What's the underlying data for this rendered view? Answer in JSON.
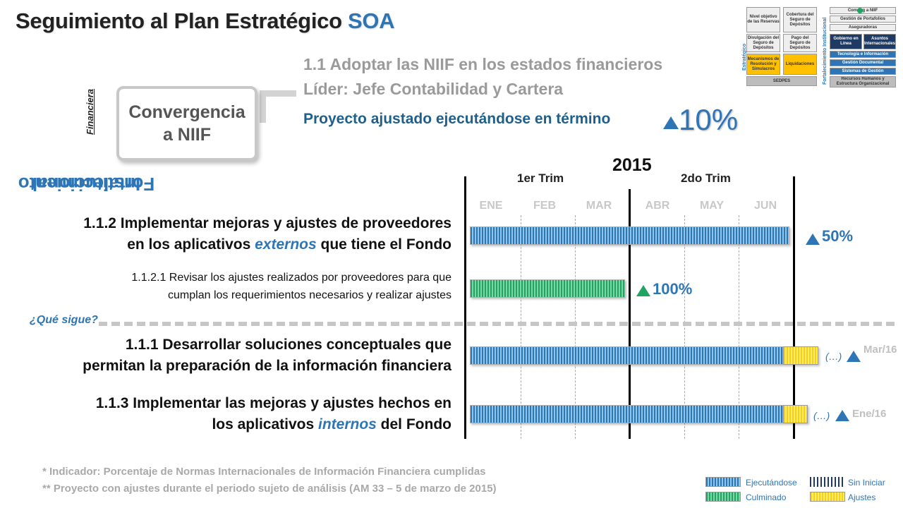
{
  "header": {
    "title_main": "Seguimiento al Plan Estratégico",
    "title_accent": "SOA"
  },
  "side": {
    "vertical_title_line1": "Fortalecimiento",
    "vertical_title_line2": "Institucional",
    "category": "Financiera"
  },
  "project": {
    "box_line1": "Convergencia",
    "box_line2": "a NIIF",
    "goal": "1.1 Adoptar las NIIF en los estados financieros",
    "leader": "Líder: Jefe Contabilidad y Cartera",
    "status": "Proyecto ajustado ejecutándose en término",
    "progress_label": "10%",
    "progress": 0.1
  },
  "mini_map": {
    "left_label": "Estratégico",
    "right_label": "Fortalecimiento Institucional",
    "cells": {
      "nivel": "Nivel objetivo de las Reservas",
      "cobertura": "Cobertura del Seguro de Depósitos",
      "divulgacion": "Divulgación del Seguro de Depósitos",
      "pago": "Pago del Seguro de Depósitos",
      "mecanismos": "Mecanismos de Resolución y Simulacros",
      "liquidaciones": "Liquidaciones",
      "sedpes": "SEDPES",
      "convergencia": "Converg      a NIIF",
      "portafolios": "Gestión de Portafolios",
      "aseguradoras": "Aseguradoras",
      "gobierno": "Gobierno en Línea",
      "asuntos": "Asuntos Internacionales",
      "tecnologia": "Tecnología e Información",
      "documental": "Gestión Documental",
      "sistemas": "Sistemas de Gestión",
      "recursos": "Recursos Humanos y Estructura Organizacional"
    }
  },
  "timeline": {
    "year": "2015",
    "trimesters": [
      "1er Trim",
      "2do Trim"
    ],
    "months": [
      "ENE",
      "FEB",
      "MAR",
      "ABR",
      "MAY",
      "JUN"
    ]
  },
  "tasks": {
    "t112": {
      "line1": "1.1.2  Implementar mejoras y ajustes de proveedores",
      "line2_pre": "en los aplicativos ",
      "line2_em": "externos",
      "line2_post": " que tiene el Fondo",
      "progress_label": "50%",
      "progress": 0.5
    },
    "t1121": {
      "line1": "1.1.2.1 Revisar los ajustes realizados por proveedores para que",
      "line2": "cumplan los requerimientos necesarios y realizar ajustes",
      "progress_label": "100%",
      "progress": 1.0
    },
    "next_label": "¿Qué sigue?",
    "t111": {
      "line1": "1.1.1 Desarrollar soluciones conceptuales que",
      "line2": "permitan la preparación de la información financiera",
      "ellipsis": "(…)",
      "date": "Mar/16"
    },
    "t113": {
      "line1": "1.1.3 Implementar las mejoras y ajustes hechos en",
      "line2_pre": "los aplicativos ",
      "line2_em": "internos",
      "line2_post": " del Fondo",
      "ellipsis": "(…)",
      "date": "Ene/16"
    }
  },
  "footnotes": {
    "note1": "* Indicador: Porcentaje de Normas Internacionales de Información Financiera cumplidas",
    "note2": "** Proyecto con ajustes durante el periodo sujeto de análisis (AM 33 – 5 de marzo de 2015)"
  },
  "legend": {
    "executing": "Ejecutándose",
    "not_started": "Sin Iniciar",
    "completed": "Culminado",
    "adjustments": "Ajustes"
  },
  "colors": {
    "accent_blue": "#2e75b6",
    "green": "#1fa463",
    "yellow": "#ffd000"
  }
}
